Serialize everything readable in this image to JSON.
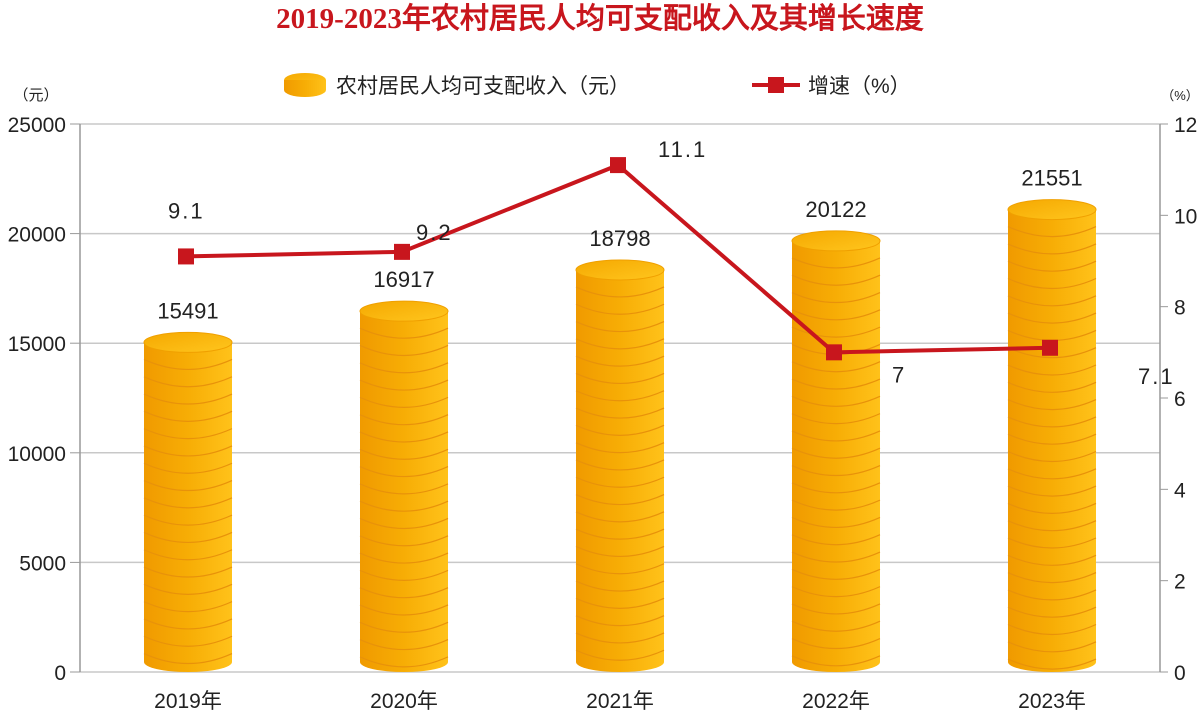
{
  "chart_data": {
    "type": "bar+line",
    "title": "2019-2023年农村居民人均可支配收入及其增长速度",
    "categories": [
      "2019年",
      "2020年",
      "2021年",
      "2022年",
      "2023年"
    ],
    "series": [
      {
        "name": "农村居民人均可支配收入（元）",
        "type": "bar",
        "axis": "left",
        "values": [
          15491,
          16917,
          18798,
          20122,
          21551
        ],
        "labels": [
          "15491",
          "16917",
          "18798",
          "20122",
          "21551"
        ]
      },
      {
        "name": "增速（%）",
        "type": "line",
        "axis": "right",
        "values": [
          9.1,
          9.2,
          11.1,
          7.0,
          7.1
        ],
        "labels": [
          "9.1",
          "9.2",
          "11.1",
          "7",
          "7.1"
        ]
      }
    ],
    "ylabel_left": "（元）",
    "ylabel_right": "（%）",
    "ylim_left": [
      0,
      25000
    ],
    "ylim_right": [
      0,
      12
    ],
    "yticks_left": [
      "0",
      "5000",
      "10000",
      "15000",
      "20000",
      "25000"
    ],
    "yticks_right": [
      "0",
      "2",
      "4",
      "6",
      "8",
      "10",
      "12"
    ],
    "grid": true,
    "legend": "top-center",
    "colors": {
      "bar": "#f5a800",
      "bar_light": "#ffc21a",
      "bar_dark": "#e08a00",
      "line": "#c8161d",
      "title": "#c8161d"
    }
  }
}
